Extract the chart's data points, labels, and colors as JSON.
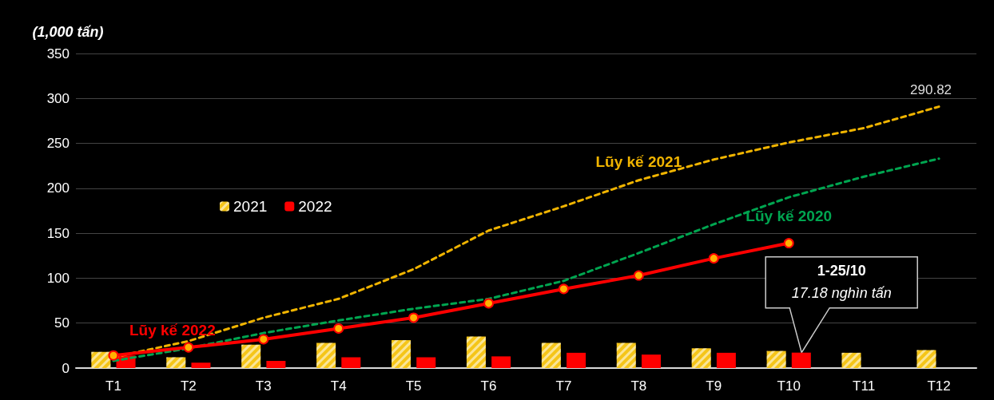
{
  "chart_data": {
    "type": "bar",
    "ylabel": "(1,000 tấn)",
    "categories": [
      "T1",
      "T2",
      "T3",
      "T4",
      "T5",
      "T6",
      "T7",
      "T8",
      "T9",
      "T10",
      "T11",
      "T12"
    ],
    "series": [
      {
        "name": "2021",
        "color": "#f5c518",
        "values": [
          18,
          12,
          26,
          28,
          31,
          35,
          28,
          28,
          22,
          19,
          17,
          20
        ]
      },
      {
        "name": "2022",
        "color": "#ff0000",
        "values": [
          14,
          6,
          8,
          12,
          12,
          13,
          17,
          15,
          17,
          17.18,
          null,
          null
        ]
      },
      {
        "name": "Lũy kế 2021",
        "type": "line",
        "color": "#f0b400",
        "line_style": "dashed",
        "marker": "none",
        "values": [
          12,
          30,
          56,
          77,
          110,
          153,
          180,
          209,
          232,
          251,
          267,
          290.82
        ],
        "value_labels": [
          null,
          null,
          null,
          null,
          null,
          null,
          null,
          null,
          null,
          null,
          null,
          "290.82"
        ]
      },
      {
        "name": "Lũy kế 2020",
        "type": "line",
        "color": "#00a550",
        "line_style": "dashed",
        "marker": "none",
        "values": [
          8,
          22,
          39,
          53,
          66,
          77,
          97,
          128,
          160,
          190,
          213,
          233
        ]
      },
      {
        "name": "Lũy kế 2022",
        "type": "line",
        "color": "#ff0000",
        "line_style": "solid",
        "marker": "circle",
        "values": [
          14,
          23,
          32,
          44,
          56,
          72,
          88,
          103,
          122,
          139,
          null,
          null
        ]
      }
    ],
    "ylim": [
      0,
      350
    ],
    "yticks": [
      0,
      50,
      100,
      150,
      200,
      250,
      300,
      350
    ],
    "grid": "y",
    "legend": "left",
    "annotations": [
      "1-25/10",
      "17.18 nghìn tấn"
    ]
  }
}
